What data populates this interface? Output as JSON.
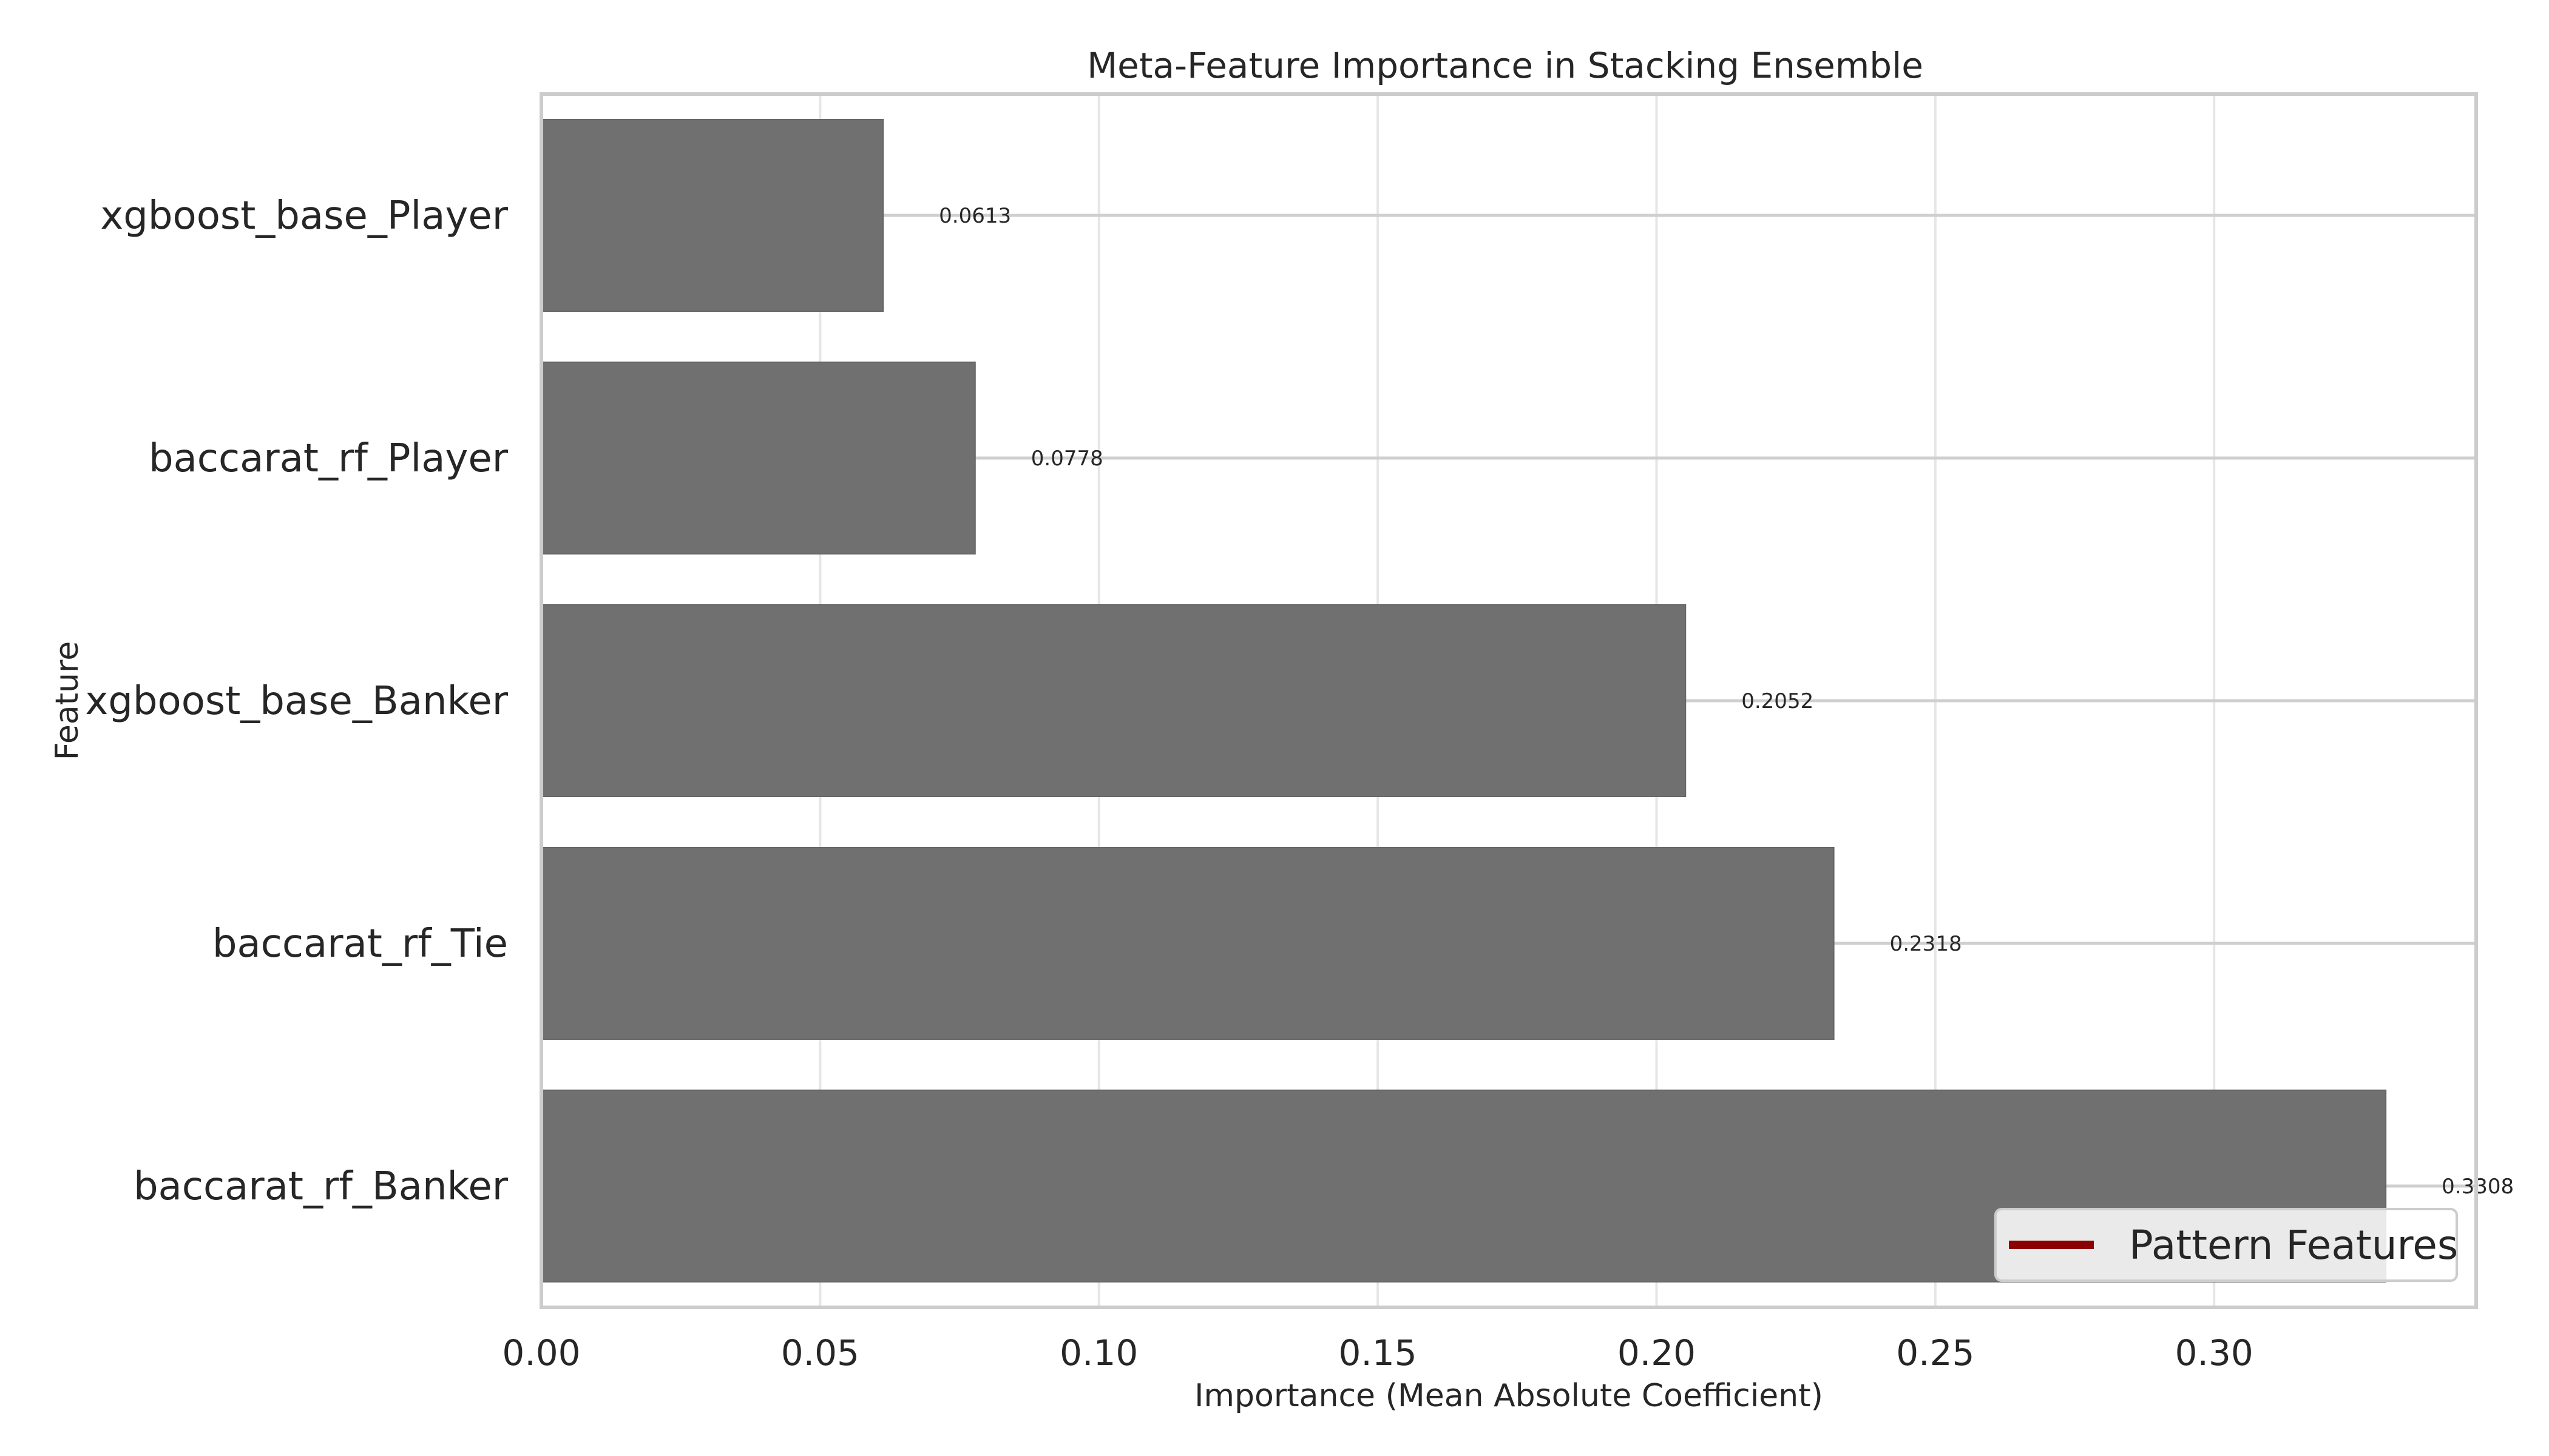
{
  "chart_data": {
    "type": "bar",
    "orientation": "horizontal",
    "title": "Meta-Feature Importance in Stacking Ensemble",
    "xlabel": "Importance (Mean Absolute Coefficient)",
    "ylabel": "Feature",
    "categories": [
      "xgboost_base_Player",
      "baccarat_rf_Player",
      "xgboost_base_Banker",
      "baccarat_rf_Tie",
      "baccarat_rf_Banker"
    ],
    "values": [
      0.0613,
      0.0778,
      0.2052,
      0.2318,
      0.3308
    ],
    "value_labels": [
      "0.0613",
      "0.0778",
      "0.2052",
      "0.2318",
      "0.3308"
    ],
    "xlim": [
      0.0,
      0.347
    ],
    "xticks": [
      0.0,
      0.05,
      0.1,
      0.15,
      0.2,
      0.25,
      0.3
    ],
    "xtick_labels": [
      "0.00",
      "0.05",
      "0.10",
      "0.15",
      "0.20",
      "0.25",
      "0.30"
    ],
    "grid": true,
    "legend": {
      "position": "lower-right",
      "entries": [
        {
          "label": "Pattern Features",
          "color": "#8b0000"
        }
      ]
    },
    "colors": {
      "bar": "#707070",
      "bar_edge": "#666666",
      "grid": "#e6e6e6",
      "frame": "#cccccc",
      "legend_line": "#8b0000"
    }
  }
}
